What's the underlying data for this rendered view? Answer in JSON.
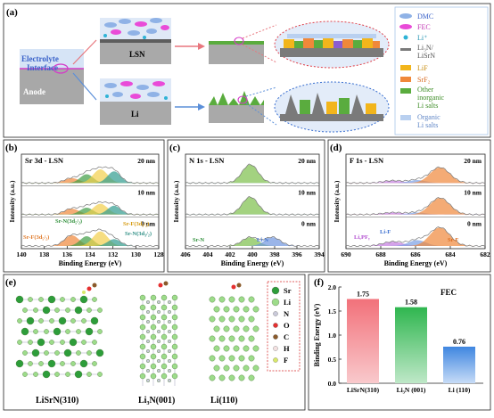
{
  "panel_a": {
    "label": "(a)",
    "electrolyte_interface": [
      "Electrolyte",
      "Interface"
    ],
    "anode": "Anode",
    "lsn": "LSN",
    "li": "Li",
    "legend": [
      {
        "text": "DMC",
        "color": "#8fb2e6"
      },
      {
        "text": "FEC",
        "color": "#e94bd8"
      },
      {
        "text": "Li⁺",
        "color": "#2eb3d6"
      },
      {
        "text": "Li₃N/",
        "text2": "LiSrN",
        "color": "#7a7a7a"
      },
      {
        "text": "LiF",
        "color": "#f2b51b"
      },
      {
        "text": "SrF₂",
        "color": "#f0883a"
      },
      {
        "text": "Other",
        "text2": "inorganic",
        "text3": "Li salts",
        "color": "#5aac3e"
      },
      {
        "text": "Organic",
        "text2": "Li salts",
        "color": "#b9d0f0"
      }
    ]
  },
  "panel_b": {
    "label": "(b)",
    "title": "Sr 3d - LSN",
    "xlabel": "Binding Energy (eV)",
    "ylabel": "Intensity (a.u.)",
    "xticks": [
      "140",
      "138",
      "136",
      "134",
      "132",
      "130",
      "128"
    ],
    "depths": [
      "20 nm",
      "10 nm",
      "0 nm"
    ],
    "peaks": [
      "Sr-F(3d₅/₂)",
      "Sr-N(3d₅/₂)",
      "Sr-F(3d₃/₂)",
      "Sr-N(3d₃/₂)"
    ]
  },
  "panel_c": {
    "label": "(c)",
    "title": "N 1s - LSN",
    "xlabel": "Binding Energy (eV)",
    "ylabel": "Intensity (a.u.)",
    "xticks": [
      "406",
      "404",
      "402",
      "400",
      "398",
      "396",
      "394"
    ],
    "depths": [
      "20 nm",
      "10 nm",
      "0 nm"
    ],
    "peaks": [
      "Sr-N",
      "Li-N"
    ]
  },
  "panel_d": {
    "label": "(d)",
    "title": "F 1s - LSN",
    "xlabel": "Binding Energy (eV)",
    "ylabel": "Intensity (a.u.)",
    "xticks": [
      "690",
      "688",
      "686",
      "684",
      "682"
    ],
    "depths": [
      "20 nm",
      "10 nm",
      "0 nm"
    ],
    "peaks": [
      "LiₓPFᵧ",
      "Li-F",
      "Sr-F"
    ]
  },
  "panel_e": {
    "label": "(e)",
    "structures": [
      "LiSrN(310)",
      "Li₃N(001)",
      "Li(110)"
    ],
    "legend": [
      {
        "text": "Sr",
        "color": "#2d9d3a"
      },
      {
        "text": "Li",
        "color": "#9ddc8a"
      },
      {
        "text": "N",
        "color": "#c9c9d9"
      },
      {
        "text": "O",
        "color": "#e53030"
      },
      {
        "text": "C",
        "color": "#8a5a2b"
      },
      {
        "text": "H",
        "color": "#f4e1e1"
      },
      {
        "text": "F",
        "color": "#d8e86a"
      }
    ]
  },
  "panel_f": {
    "label": "(f)",
    "annotation": "FEC"
  },
  "chart_data": [
    {
      "type": "bar",
      "title": "FEC",
      "categories": [
        "LiSrN(310)",
        "Li₃N (001)",
        "Li (110)"
      ],
      "values": [
        1.75,
        1.58,
        0.76
      ],
      "value_labels": [
        "1.75",
        "1.58",
        "0.76"
      ],
      "ylabel": "Binding Energy (eV)",
      "ylim": [
        0.0,
        2.0
      ],
      "yticks": [
        "0.0",
        "0.5",
        "1.0",
        "1.5",
        "2.0"
      ],
      "colors": [
        "#e9545c",
        "#2fb64f",
        "#3f86e0"
      ]
    }
  ]
}
